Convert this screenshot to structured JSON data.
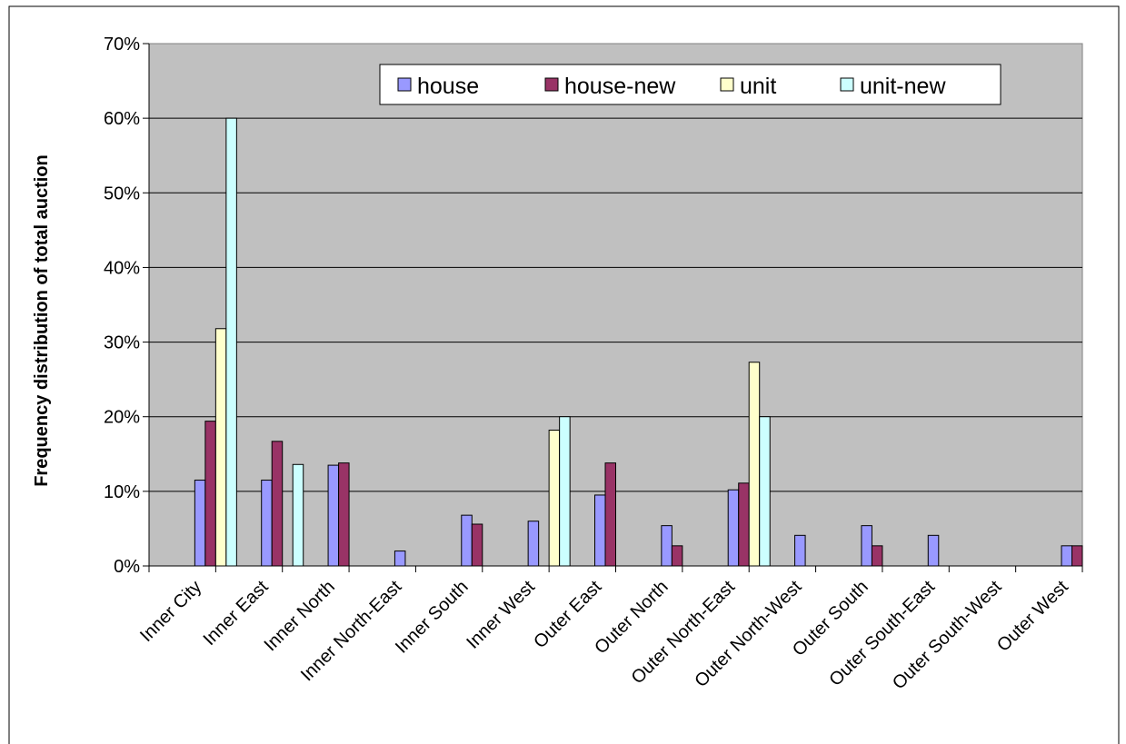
{
  "chart_data": {
    "type": "bar",
    "title": "",
    "xlabel": "",
    "ylabel": "Frequency distribution of total auction",
    "ylim": [
      0,
      0.7
    ],
    "yticks": [
      "0%",
      "10%",
      "20%",
      "30%",
      "40%",
      "50%",
      "60%",
      "70%"
    ],
    "grid": true,
    "legend_position": "top-right",
    "plot_background": "#c0c0c0",
    "categories": [
      "Inner City",
      "Inner East",
      "Inner North",
      "Inner North-East",
      "Inner South",
      "Inner West",
      "Outer East",
      "Outer North",
      "Outer North-East",
      "Outer North-West",
      "Outer South",
      "Outer South-East",
      "Outer South-West",
      "Outer West"
    ],
    "series": [
      {
        "name": "house",
        "color": "#9999ff",
        "values": [
          0.115,
          0.115,
          0.135,
          0.02,
          0.068,
          0.06,
          0.095,
          0.054,
          0.102,
          0.041,
          0.054,
          0.041,
          0,
          0.027
        ]
      },
      {
        "name": "house-new",
        "color": "#993366",
        "values": [
          0.194,
          0.167,
          0.138,
          0,
          0.056,
          0,
          0.138,
          0.027,
          0.111,
          0,
          0.027,
          0,
          0,
          0.027
        ]
      },
      {
        "name": "unit",
        "color": "#ffffcc",
        "values": [
          0.318,
          0,
          0,
          0,
          0,
          0.182,
          0,
          0,
          0.273,
          0,
          0,
          0,
          0,
          0
        ]
      },
      {
        "name": "unit-new",
        "color": "#ccffff",
        "values": [
          0.6,
          0.136,
          0,
          0,
          0,
          0.2,
          0,
          0,
          0.2,
          0,
          0,
          0,
          0,
          0
        ]
      }
    ]
  }
}
